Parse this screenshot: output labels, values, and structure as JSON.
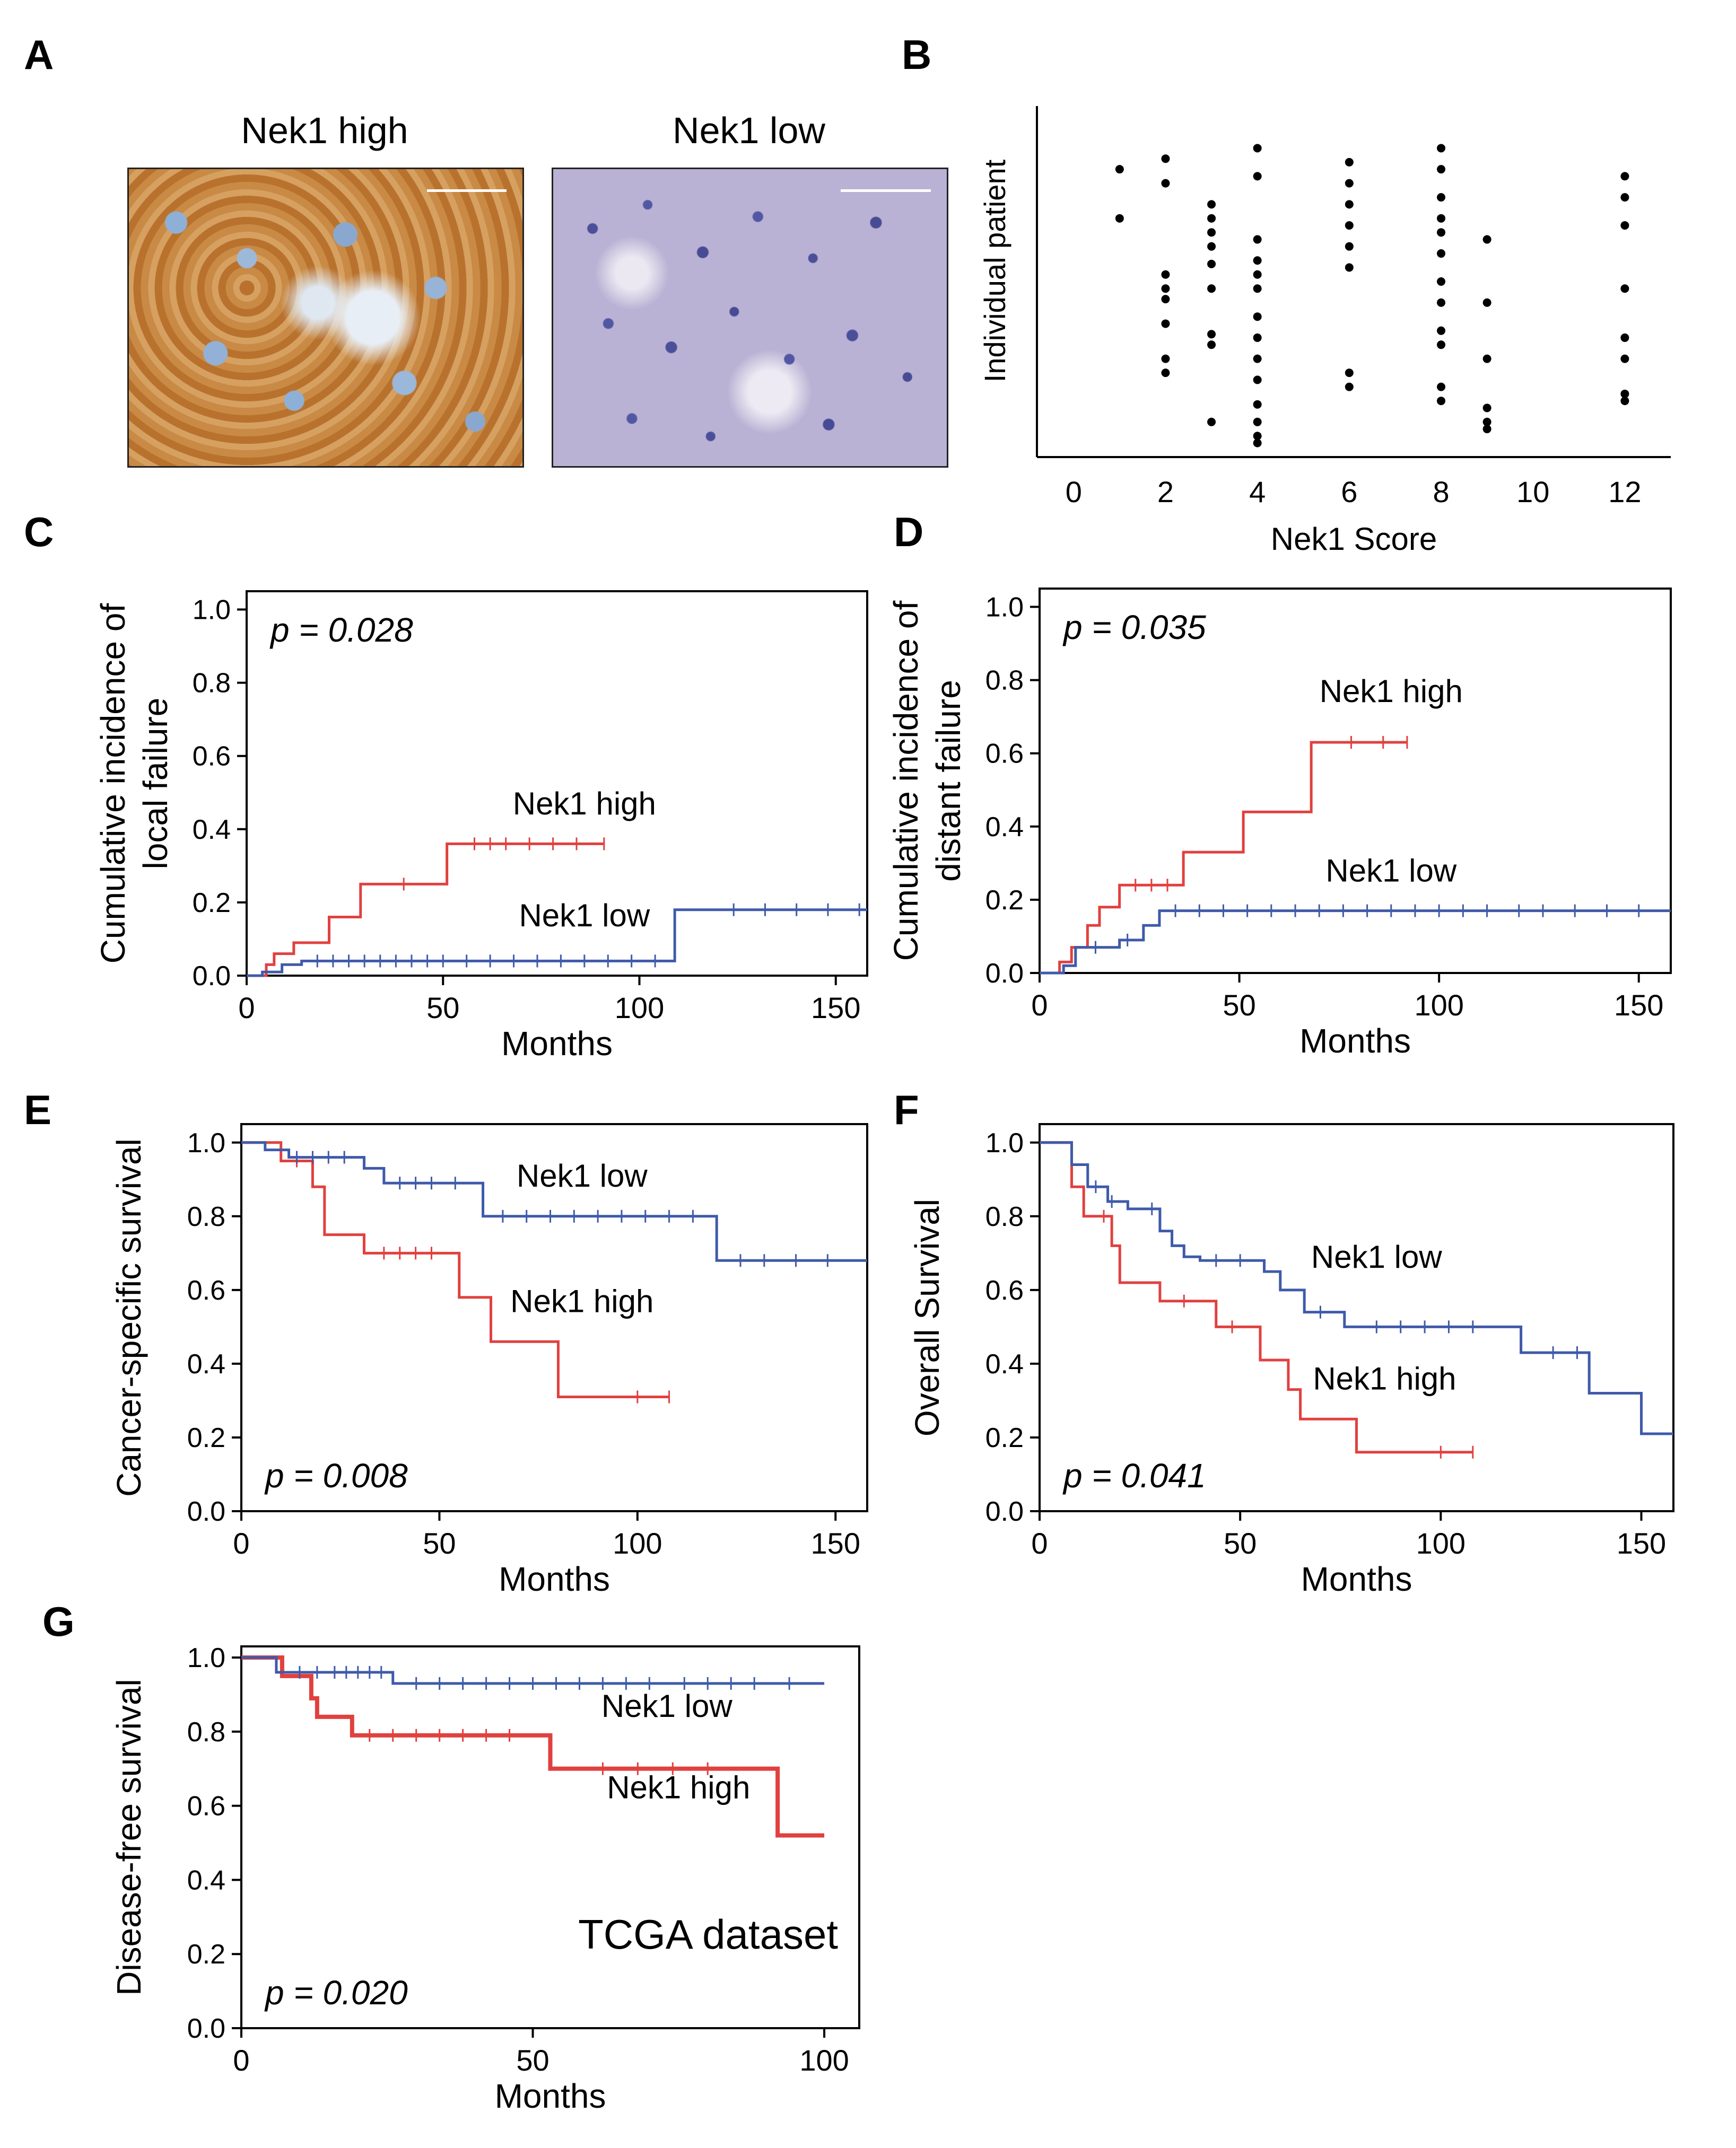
{
  "colors": {
    "high": "#e0413f",
    "low": "#3f5aaa",
    "axis": "#000000"
  },
  "panels": {
    "A": {
      "letter": "A",
      "images": [
        {
          "title": "Nek1 high",
          "tissue": "dense brown cytoplasmic/membrane staining"
        },
        {
          "title": "Nek1 low",
          "tissue": "blue hematoxylin nuclei, pale background"
        }
      ]
    }
  },
  "chart_data": [
    {
      "id": "B",
      "letter": "B",
      "type": "scatter",
      "xlabel": "Nek1 Score",
      "ylabel": "Individual patient",
      "xticks": [
        0,
        2,
        4,
        6,
        8,
        10,
        12
      ],
      "xlim": [
        -0.8,
        13.0
      ],
      "ylim": [
        0,
        100
      ],
      "show_y_ticks": false,
      "points": [
        [
          1,
          82
        ],
        [
          1,
          68
        ],
        [
          2,
          85
        ],
        [
          2,
          78
        ],
        [
          2,
          52
        ],
        [
          2,
          48
        ],
        [
          2,
          45
        ],
        [
          2,
          38
        ],
        [
          2,
          28
        ],
        [
          2,
          24
        ],
        [
          3,
          72
        ],
        [
          3,
          68
        ],
        [
          3,
          64
        ],
        [
          3,
          60
        ],
        [
          3,
          55
        ],
        [
          3,
          48
        ],
        [
          3,
          35
        ],
        [
          3,
          32
        ],
        [
          3,
          10
        ],
        [
          4,
          88
        ],
        [
          4,
          80
        ],
        [
          4,
          62
        ],
        [
          4,
          56
        ],
        [
          4,
          52
        ],
        [
          4,
          48
        ],
        [
          4,
          40
        ],
        [
          4,
          34
        ],
        [
          4,
          28
        ],
        [
          4,
          22
        ],
        [
          4,
          15
        ],
        [
          4,
          10
        ],
        [
          4,
          6
        ],
        [
          4,
          4
        ],
        [
          6,
          84
        ],
        [
          6,
          78
        ],
        [
          6,
          72
        ],
        [
          6,
          66
        ],
        [
          6,
          60
        ],
        [
          6,
          54
        ],
        [
          6,
          24
        ],
        [
          6,
          20
        ],
        [
          8,
          88
        ],
        [
          8,
          82
        ],
        [
          8,
          74
        ],
        [
          8,
          68
        ],
        [
          8,
          64
        ],
        [
          8,
          58
        ],
        [
          8,
          50
        ],
        [
          8,
          44
        ],
        [
          8,
          36
        ],
        [
          8,
          32
        ],
        [
          8,
          20
        ],
        [
          8,
          16
        ],
        [
          9,
          62
        ],
        [
          9,
          44
        ],
        [
          9,
          28
        ],
        [
          9,
          14
        ],
        [
          9,
          10
        ],
        [
          9,
          8
        ],
        [
          12,
          80
        ],
        [
          12,
          74
        ],
        [
          12,
          66
        ],
        [
          12,
          48
        ],
        [
          12,
          34
        ],
        [
          12,
          28
        ],
        [
          12,
          18
        ],
        [
          12,
          16
        ]
      ]
    },
    {
      "id": "C",
      "letter": "C",
      "type": "line",
      "xlabel": "Months",
      "ylabel_lines": [
        "Cumulative  incidence  of",
        "local  failure"
      ],
      "xticks": [
        0,
        50,
        100,
        150
      ],
      "yticks": [
        "0.0",
        "0.2",
        "0.4",
        "0.6",
        "0.8",
        "1.0"
      ],
      "xlim": [
        0,
        158
      ],
      "ylim": [
        0,
        1.05
      ],
      "pvalue": "p = 0.028",
      "series": [
        {
          "name": "Nek1 high",
          "color_key": "high",
          "steps": [
            [
              0,
              0
            ],
            [
              5,
              0.03
            ],
            [
              7,
              0.06
            ],
            [
              12,
              0.09
            ],
            [
              21,
              0.16
            ],
            [
              29,
              0.25
            ],
            [
              51,
              0.36
            ],
            [
              91,
              0.36
            ]
          ],
          "censor": [
            40,
            58,
            62,
            66,
            72,
            78,
            84,
            91
          ]
        },
        {
          "name": "Nek1 low",
          "color_key": "low",
          "steps": [
            [
              0,
              0
            ],
            [
              4,
              0.01
            ],
            [
              9,
              0.03
            ],
            [
              14,
              0.04
            ],
            [
              109,
              0.18
            ],
            [
              158,
              0.18
            ]
          ],
          "censor": [
            18,
            22,
            26,
            30,
            34,
            38,
            42,
            46,
            50,
            56,
            62,
            68,
            74,
            80,
            86,
            92,
            98,
            104,
            124,
            132,
            140,
            148,
            156
          ]
        }
      ],
      "labels": [
        {
          "text": "Nek1 high",
          "x": 86,
          "y": 0.44
        },
        {
          "text": "Nek1 low",
          "x": 86,
          "y": 0.135
        }
      ]
    },
    {
      "id": "D",
      "letter": "D",
      "type": "line",
      "xlabel": "Months",
      "ylabel_lines": [
        "Cumulative  incidence  of",
        "distant  failure"
      ],
      "xticks": [
        0,
        50,
        100,
        150
      ],
      "yticks": [
        "0.0",
        "0.2",
        "0.4",
        "0.6",
        "0.8",
        "1.0"
      ],
      "xlim": [
        0,
        158
      ],
      "ylim": [
        0,
        1.05
      ],
      "pvalue": "p = 0.035",
      "series": [
        {
          "name": "Nek1 high",
          "color_key": "high",
          "steps": [
            [
              0,
              0
            ],
            [
              5,
              0.03
            ],
            [
              8,
              0.07
            ],
            [
              12,
              0.13
            ],
            [
              15,
              0.18
            ],
            [
              20,
              0.24
            ],
            [
              36,
              0.33
            ],
            [
              51,
              0.44
            ],
            [
              68,
              0.63
            ],
            [
              92,
              0.63
            ]
          ],
          "censor": [
            24,
            28,
            32,
            78,
            86,
            92
          ]
        },
        {
          "name": "Nek1 low",
          "color_key": "low",
          "steps": [
            [
              0,
              0
            ],
            [
              6,
              0.02
            ],
            [
              9,
              0.07
            ],
            [
              20,
              0.09
            ],
            [
              26,
              0.13
            ],
            [
              30,
              0.17
            ],
            [
              158,
              0.17
            ]
          ],
          "censor": [
            14,
            22,
            34,
            40,
            46,
            52,
            58,
            64,
            70,
            76,
            82,
            88,
            94,
            100,
            106,
            112,
            120,
            126,
            134,
            142,
            150
          ]
        }
      ],
      "labels": [
        {
          "text": "Nek1 high",
          "x": 88,
          "y": 0.74
        },
        {
          "text": "Nek1 low",
          "x": 88,
          "y": 0.25
        }
      ]
    },
    {
      "id": "E",
      "letter": "E",
      "type": "line",
      "xlabel": "Months",
      "ylabel_lines": [
        "Cancer-specific  survival"
      ],
      "xticks": [
        0,
        50,
        100,
        150
      ],
      "yticks": [
        "0.0",
        "0.2",
        "0.4",
        "0.6",
        "0.8",
        "1.0"
      ],
      "xlim": [
        0,
        158
      ],
      "ylim": [
        0,
        1.05
      ],
      "pvalue": "p = 0.008",
      "series": [
        {
          "name": "Nek1 high",
          "color_key": "high",
          "steps": [
            [
              0,
              1.0
            ],
            [
              10,
              0.95
            ],
            [
              18,
              0.88
            ],
            [
              21,
              0.75
            ],
            [
              31,
              0.7
            ],
            [
              55,
              0.58
            ],
            [
              63,
              0.46
            ],
            [
              80,
              0.31
            ],
            [
              108,
              0.31
            ]
          ],
          "censor": [
            14,
            36,
            40,
            44,
            48,
            100,
            108
          ]
        },
        {
          "name": "Nek1 low",
          "color_key": "low",
          "steps": [
            [
              0,
              1.0
            ],
            [
              6,
              0.98
            ],
            [
              12,
              0.96
            ],
            [
              31,
              0.93
            ],
            [
              36,
              0.89
            ],
            [
              61,
              0.8
            ],
            [
              120,
              0.68
            ],
            [
              158,
              0.68
            ]
          ],
          "censor": [
            14,
            18,
            22,
            26,
            40,
            44,
            48,
            54,
            66,
            72,
            78,
            84,
            90,
            96,
            102,
            108,
            114,
            126,
            132,
            140,
            148
          ]
        }
      ],
      "labels": [
        {
          "text": "Nek1 low",
          "x": 86,
          "y": 0.88
        },
        {
          "text": "Nek1 high",
          "x": 86,
          "y": 0.54
        }
      ]
    },
    {
      "id": "F",
      "letter": "F",
      "type": "line",
      "xlabel": "Months",
      "ylabel_lines": [
        "Overall  Survival"
      ],
      "xticks": [
        0,
        50,
        100,
        150
      ],
      "yticks": [
        "0.0",
        "0.2",
        "0.4",
        "0.6",
        "0.8",
        "1.0"
      ],
      "xlim": [
        0,
        158
      ],
      "ylim": [
        0,
        1.05
      ],
      "pvalue": "p = 0.041",
      "series": [
        {
          "name": "Nek1 high",
          "color_key": "high",
          "steps": [
            [
              0,
              1.0
            ],
            [
              8,
              0.88
            ],
            [
              11,
              0.8
            ],
            [
              18,
              0.72
            ],
            [
              20,
              0.62
            ],
            [
              30,
              0.57
            ],
            [
              44,
              0.5
            ],
            [
              55,
              0.41
            ],
            [
              62,
              0.33
            ],
            [
              65,
              0.25
            ],
            [
              79,
              0.16
            ],
            [
              108,
              0.16
            ]
          ],
          "censor": [
            16,
            36,
            48,
            100,
            108
          ]
        },
        {
          "name": "Nek1 low",
          "color_key": "low",
          "steps": [
            [
              0,
              1.0
            ],
            [
              8,
              0.94
            ],
            [
              12,
              0.88
            ],
            [
              17,
              0.84
            ],
            [
              22,
              0.82
            ],
            [
              30,
              0.76
            ],
            [
              33,
              0.72
            ],
            [
              36,
              0.69
            ],
            [
              40,
              0.68
            ],
            [
              56,
              0.65
            ],
            [
              60,
              0.6
            ],
            [
              66,
              0.54
            ],
            [
              76,
              0.5
            ],
            [
              120,
              0.43
            ],
            [
              137,
              0.32
            ],
            [
              150,
              0.21
            ],
            [
              158,
              0.21
            ]
          ],
          "censor": [
            14,
            18,
            28,
            44,
            50,
            70,
            84,
            90,
            96,
            102,
            108,
            128,
            134
          ]
        }
      ],
      "labels": [
        {
          "text": "Nek1 low",
          "x": 84,
          "y": 0.66
        },
        {
          "text": "Nek1 high",
          "x": 86,
          "y": 0.33
        }
      ]
    },
    {
      "id": "G",
      "letter": "G",
      "type": "line",
      "xlabel": "Months",
      "ylabel_lines": [
        "Disease-free  survival"
      ],
      "xticks": [
        0,
        50,
        100
      ],
      "yticks": [
        "0.0",
        "0.2",
        "0.4",
        "0.6",
        "0.8",
        "1.0"
      ],
      "xlim": [
        0,
        106
      ],
      "ylim": [
        0,
        1.03
      ],
      "pvalue": "p = 0.020",
      "annotation": "TCGA dataset",
      "series": [
        {
          "name": "Nek1 high",
          "color_key": "high",
          "thick": true,
          "steps": [
            [
              0,
              1.0
            ],
            [
              7,
              0.95
            ],
            [
              12,
              0.89
            ],
            [
              13,
              0.84
            ],
            [
              19,
              0.79
            ],
            [
              53,
              0.7
            ],
            [
              92,
              0.52
            ],
            [
              100,
              0.52
            ]
          ],
          "censor": [
            22,
            26,
            30,
            34,
            38,
            42,
            46,
            62,
            68,
            74,
            80
          ]
        },
        {
          "name": "Nek1 low",
          "color_key": "low",
          "steps": [
            [
              0,
              1.0
            ],
            [
              6,
              0.96
            ],
            [
              26,
              0.93
            ],
            [
              100,
              0.93
            ]
          ],
          "censor": [
            10,
            13,
            16,
            18,
            20,
            22,
            24,
            30,
            34,
            38,
            42,
            46,
            50,
            54,
            58,
            62,
            66,
            70,
            76,
            80,
            84,
            88,
            94
          ]
        }
      ],
      "labels": [
        {
          "text": "Nek1 low",
          "x": 73,
          "y": 0.84
        },
        {
          "text": "Nek1 high",
          "x": 75,
          "y": 0.62
        }
      ]
    }
  ]
}
